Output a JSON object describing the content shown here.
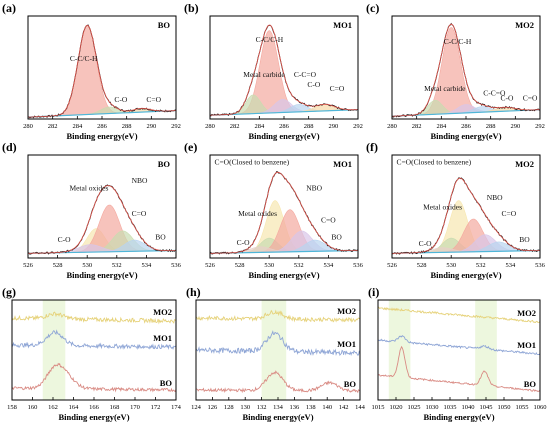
{
  "chart_data": [
    {
      "label": "(a)",
      "type": "line",
      "sample": "BO",
      "xlabel": "Binding energy(eV)",
      "xlim": [
        280,
        292
      ],
      "xticks": [
        280,
        282,
        284,
        286,
        288,
        290,
        292
      ],
      "ylim": [
        0,
        1.1
      ],
      "peaks": [
        {
          "name": "C-C/C-H",
          "center": 284.8,
          "height": 0.95,
          "width": 0.75,
          "fill": "#f4a9a0"
        },
        {
          "name": "C-O",
          "center": 286.6,
          "height": 0.07,
          "width": 0.7,
          "fill": "#c9dcb0"
        },
        {
          "name": "C=O",
          "center": 289.2,
          "height": 0.04,
          "width": 0.7,
          "fill": "#f6d9a6"
        }
      ],
      "baseline": {
        "start": 0.02,
        "end": 0.09
      },
      "annotations": [
        {
          "text": "C-C/C-H",
          "x": 283.4,
          "y": 0.62
        },
        {
          "text": "C-O",
          "x": 287.0,
          "y": 0.18
        },
        {
          "text": "C=O",
          "x": 289.6,
          "y": 0.18
        }
      ]
    },
    {
      "label": "(b)",
      "type": "line",
      "sample": "MO1",
      "xlabel": "Binding energy(eV)",
      "xlim": [
        280,
        292
      ],
      "xticks": [
        280,
        282,
        284,
        286,
        288,
        290,
        292
      ],
      "ylim": [
        0,
        1.1
      ],
      "peaks": [
        {
          "name": "C-C/C-H",
          "center": 284.8,
          "height": 0.88,
          "width": 0.75,
          "fill": "#f4a9a0"
        },
        {
          "name": "Metal carbide",
          "center": 283.5,
          "height": 0.2,
          "width": 0.6,
          "fill": "#c9dcb0"
        },
        {
          "name": "C-C=O",
          "center": 285.9,
          "height": 0.14,
          "width": 0.7,
          "fill": "#d9c6e8"
        },
        {
          "name": "C-O",
          "center": 287.2,
          "height": 0.08,
          "width": 0.7,
          "fill": "#b9d4ef"
        },
        {
          "name": "C=O",
          "center": 289.3,
          "height": 0.07,
          "width": 0.8,
          "fill": "#f6d9a6"
        }
      ],
      "baseline": {
        "start": 0.04,
        "end": 0.1
      },
      "annotations": [
        {
          "text": "C-C/C-H",
          "x": 283.7,
          "y": 0.82
        },
        {
          "text": "Metal carbide",
          "x": 282.7,
          "y": 0.45
        },
        {
          "text": "C-C=O",
          "x": 286.8,
          "y": 0.45
        },
        {
          "text": "C-O",
          "x": 287.9,
          "y": 0.34
        },
        {
          "text": "C=O",
          "x": 289.7,
          "y": 0.3
        }
      ]
    },
    {
      "label": "(c)",
      "type": "line",
      "sample": "MO2",
      "xlabel": "Binding energy(eV)",
      "xlim": [
        280,
        292
      ],
      "xticks": [
        280,
        282,
        284,
        286,
        288,
        290,
        292
      ],
      "ylim": [
        0,
        1.1
      ],
      "peaks": [
        {
          "name": "C-C/C-H",
          "center": 284.8,
          "height": 0.92,
          "width": 0.75,
          "fill": "#f4a9a0"
        },
        {
          "name": "Metal carbide",
          "center": 283.5,
          "height": 0.15,
          "width": 0.6,
          "fill": "#c9dcb0"
        },
        {
          "name": "C-C=O",
          "center": 286.0,
          "height": 0.09,
          "width": 0.7,
          "fill": "#d9c6e8"
        },
        {
          "name": "C-O",
          "center": 287.3,
          "height": 0.06,
          "width": 0.7,
          "fill": "#b9d4ef"
        },
        {
          "name": "C=O",
          "center": 289.2,
          "height": 0.04,
          "width": 0.8,
          "fill": "#f6d9a6"
        }
      ],
      "baseline": {
        "start": 0.03,
        "end": 0.1
      },
      "annotations": [
        {
          "text": "C-C/C-H",
          "x": 284.2,
          "y": 0.8
        },
        {
          "text": "Metal carbide",
          "x": 282.6,
          "y": 0.3
        },
        {
          "text": "C-C=O",
          "x": 287.4,
          "y": 0.25
        },
        {
          "text": "C-O",
          "x": 288.8,
          "y": 0.2
        },
        {
          "text": "C=O",
          "x": 290.6,
          "y": 0.2
        }
      ]
    },
    {
      "label": "(d)",
      "type": "line",
      "sample": "BO",
      "xlabel": "Binding energy(eV)",
      "xlim": [
        526,
        536
      ],
      "xticks": [
        526,
        528,
        530,
        532,
        534,
        536
      ],
      "ylim": [
        0,
        1.1
      ],
      "peaks": [
        {
          "name": "Metal oxides",
          "center": 530.6,
          "height": 0.25,
          "width": 0.6,
          "fill": "#f7e7b0"
        },
        {
          "name": "NBO",
          "center": 531.5,
          "height": 0.5,
          "width": 0.7,
          "fill": "#f4a9a0"
        },
        {
          "name": "C=O",
          "center": 532.4,
          "height": 0.22,
          "width": 0.7,
          "fill": "#c9dcb0"
        },
        {
          "name": "BO",
          "center": 533.2,
          "height": 0.12,
          "width": 0.7,
          "fill": "#b9d4ef"
        },
        {
          "name": "C-O",
          "center": 530.2,
          "height": 0.08,
          "width": 0.8,
          "fill": "#d9c6e8"
        }
      ],
      "baseline": {
        "start": 0.05,
        "end": 0.08
      },
      "annotations": [
        {
          "text": "Metal oxides",
          "x": 528.8,
          "y": 0.72
        },
        {
          "text": "NBO",
          "x": 533.0,
          "y": 0.8
        },
        {
          "text": "C=O",
          "x": 533.0,
          "y": 0.45
        },
        {
          "text": "BO",
          "x": 534.6,
          "y": 0.2
        },
        {
          "text": "C-O",
          "x": 528.0,
          "y": 0.17
        }
      ]
    },
    {
      "label": "(e)",
      "type": "line",
      "sample": "MO1",
      "xlabel": "Binding energy(eV)",
      "xlim": [
        526,
        536
      ],
      "xticks": [
        526,
        528,
        530,
        532,
        534,
        536
      ],
      "ylim": [
        0,
        1.1
      ],
      "peaks": [
        {
          "name": "C=O(Closed to benzene)",
          "center": 530.4,
          "height": 0.55,
          "width": 0.6,
          "fill": "#f7e7b0"
        },
        {
          "name": "Metal oxides",
          "center": 530.0,
          "height": 0.15,
          "width": 0.6,
          "fill": "#c9dcb0"
        },
        {
          "name": "NBO",
          "center": 531.4,
          "height": 0.45,
          "width": 0.65,
          "fill": "#f4a9a0"
        },
        {
          "name": "C=O",
          "center": 532.2,
          "height": 0.22,
          "width": 0.7,
          "fill": "#d9c6e8"
        },
        {
          "name": "BO",
          "center": 533.1,
          "height": 0.12,
          "width": 0.7,
          "fill": "#b9d4ef"
        },
        {
          "name": "C-O",
          "center": 529.4,
          "height": 0.06,
          "width": 0.7,
          "fill": "#e8d0c9"
        }
      ],
      "baseline": {
        "start": 0.05,
        "end": 0.08
      },
      "annotations": [
        {
          "text": "C=O(Closed to benzene)",
          "x": 526.3,
          "y": 1.0
        },
        {
          "text": "NBO",
          "x": 532.5,
          "y": 0.72
        },
        {
          "text": "Metal oxides",
          "x": 527.9,
          "y": 0.45
        },
        {
          "text": "C=O",
          "x": 533.5,
          "y": 0.38
        },
        {
          "text": "BO",
          "x": 534.2,
          "y": 0.2
        },
        {
          "text": "C-O",
          "x": 527.8,
          "y": 0.14
        }
      ]
    },
    {
      "label": "(f)",
      "type": "line",
      "sample": "MO2",
      "xlabel": "Binding energy(eV)",
      "xlim": [
        526,
        536
      ],
      "xticks": [
        526,
        528,
        530,
        532,
        534,
        536
      ],
      "ylim": [
        0,
        1.1
      ],
      "peaks": [
        {
          "name": "C=O(Closed to benzene)",
          "center": 530.5,
          "height": 0.55,
          "width": 0.6,
          "fill": "#f7e7b0"
        },
        {
          "name": "Metal oxides",
          "center": 530.0,
          "height": 0.15,
          "width": 0.6,
          "fill": "#c9dcb0"
        },
        {
          "name": "NBO",
          "center": 531.5,
          "height": 0.35,
          "width": 0.65,
          "fill": "#f4a9a0"
        },
        {
          "name": "C=O",
          "center": 532.3,
          "height": 0.18,
          "width": 0.7,
          "fill": "#d9c6e8"
        },
        {
          "name": "BO",
          "center": 533.2,
          "height": 0.1,
          "width": 0.7,
          "fill": "#b9d4ef"
        },
        {
          "name": "C-O",
          "center": 529.4,
          "height": 0.05,
          "width": 0.7,
          "fill": "#e8d0c9"
        }
      ],
      "baseline": {
        "start": 0.05,
        "end": 0.08
      },
      "annotations": [
        {
          "text": "C=O(Closed to benzene)",
          "x": 526.3,
          "y": 1.0
        },
        {
          "text": "NBO",
          "x": 532.4,
          "y": 0.62
        },
        {
          "text": "Metal oxides",
          "x": 528.1,
          "y": 0.52
        },
        {
          "text": "C=O",
          "x": 533.4,
          "y": 0.45
        },
        {
          "text": "BO",
          "x": 534.6,
          "y": 0.17
        },
        {
          "text": "C-O",
          "x": 527.8,
          "y": 0.13
        }
      ]
    },
    {
      "label": "(g)",
      "type": "line",
      "xlabel": "Binding energy(eV)",
      "xlim": [
        158,
        174
      ],
      "xticks": [
        158,
        160,
        162,
        164,
        166,
        168,
        170,
        172,
        174
      ],
      "highlight": [
        [
          161,
          163.2
        ]
      ],
      "series": [
        {
          "name": "MO2",
          "color": "#e6d27a",
          "base": 0.82,
          "peaks": [
            {
              "center": 162.2,
              "height": 0.05,
              "width": 0.8
            }
          ],
          "noise": 0.02,
          "slope": -0.03
        },
        {
          "name": "MO1",
          "color": "#8fa6d6",
          "base": 0.55,
          "peaks": [
            {
              "center": 162.2,
              "height": 0.13,
              "width": 0.8
            }
          ],
          "noise": 0.02,
          "slope": -0.02
        },
        {
          "name": "BO",
          "color": "#d98b84",
          "base": 0.12,
          "peaks": [
            {
              "center": 162.2,
              "height": 0.2,
              "width": 0.8
            },
            {
              "center": 163.4,
              "height": 0.1,
              "width": 0.8
            }
          ],
          "noise": 0.015,
          "slope": -0.02
        }
      ]
    },
    {
      "label": "(h)",
      "type": "line",
      "xlabel": "Binding energy(eV)",
      "xlim": [
        124,
        144
      ],
      "xticks": [
        124,
        126,
        128,
        130,
        132,
        134,
        136,
        138,
        140,
        142,
        144
      ],
      "highlight": [
        [
          132,
          135
        ]
      ],
      "series": [
        {
          "name": "MO2",
          "color": "#e6d27a",
          "base": 0.82,
          "peaks": [
            {
              "center": 133.6,
              "height": 0.07,
              "width": 1.0
            }
          ],
          "noise": 0.02,
          "slope": -0.02
        },
        {
          "name": "MO1",
          "color": "#8fa6d6",
          "base": 0.5,
          "peaks": [
            {
              "center": 133.6,
              "height": 0.18,
              "width": 1.0
            }
          ],
          "noise": 0.025,
          "slope": -0.03
        },
        {
          "name": "BO",
          "color": "#d98b84",
          "base": 0.1,
          "peaks": [
            {
              "center": 133.6,
              "height": 0.18,
              "width": 1.0
            },
            {
              "center": 140.3,
              "height": 0.08,
              "width": 1.0
            }
          ],
          "noise": 0.015,
          "slope": -0.01
        }
      ]
    },
    {
      "label": "(i)",
      "type": "line",
      "xlabel": "Binding energy(eV)",
      "xlim": [
        1015,
        1060
      ],
      "xticks": [
        1015,
        1020,
        1025,
        1030,
        1035,
        1040,
        1045,
        1050,
        1055,
        1060
      ],
      "highlight": [
        [
          1018,
          1024
        ],
        [
          1042,
          1048
        ]
      ],
      "series": [
        {
          "name": "MO2",
          "color": "#e6d27a",
          "base": 0.92,
          "peaks": [],
          "noise": 0.01,
          "slope": -0.14
        },
        {
          "name": "MO1",
          "color": "#8fa6d6",
          "base": 0.6,
          "peaks": [
            {
              "center": 1021.6,
              "height": 0.06,
              "width": 1.0
            },
            {
              "center": 1044.6,
              "height": 0.03,
              "width": 1.2
            }
          ],
          "noise": 0.01,
          "slope": -0.14
        },
        {
          "name": "BO",
          "color": "#d98b84",
          "base": 0.25,
          "peaks": [
            {
              "center": 1021.6,
              "height": 0.3,
              "width": 0.9
            },
            {
              "center": 1044.6,
              "height": 0.14,
              "width": 1.0
            }
          ],
          "noise": 0.008,
          "slope": -0.16
        }
      ]
    }
  ]
}
